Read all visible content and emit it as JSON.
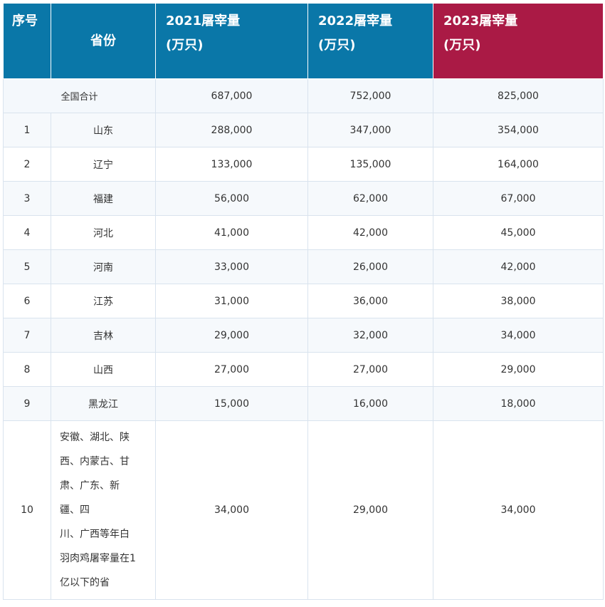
{
  "headers": {
    "seq": "序号",
    "province": "省份",
    "y2021_line1": "2021屠宰量",
    "y2021_line2": "(万只)",
    "y2022_line1": "2022屠宰量",
    "y2022_line2": "(万只)",
    "y2023_line1": "2023屠宰量",
    "y2023_line2": "(万只)"
  },
  "total": {
    "label": "全国合计",
    "y2021": "687,000",
    "y2022": "752,000",
    "y2023": "825,000"
  },
  "rows": [
    {
      "seq": "1",
      "province": "山东",
      "y2021": "288,000",
      "y2022": "347,000",
      "y2023": "354,000"
    },
    {
      "seq": "2",
      "province": "辽宁",
      "y2021": "133,000",
      "y2022": "135,000",
      "y2023": "164,000"
    },
    {
      "seq": "3",
      "province": "福建",
      "y2021": "56,000",
      "y2022": "62,000",
      "y2023": "67,000"
    },
    {
      "seq": "4",
      "province": "河北",
      "y2021": "41,000",
      "y2022": "42,000",
      "y2023": "45,000"
    },
    {
      "seq": "5",
      "province": "河南",
      "y2021": "33,000",
      "y2022": "26,000",
      "y2023": "42,000"
    },
    {
      "seq": "6",
      "province": "江苏",
      "y2021": "31,000",
      "y2022": "36,000",
      "y2023": "38,000"
    },
    {
      "seq": "7",
      "province": "吉林",
      "y2021": "29,000",
      "y2022": "32,000",
      "y2023": "34,000"
    },
    {
      "seq": "8",
      "province": "山西",
      "y2021": "27,000",
      "y2022": "27,000",
      "y2023": "29,000"
    },
    {
      "seq": "9",
      "province": "黑龙江",
      "y2021": "15,000",
      "y2022": "16,000",
      "y2023": "18,000"
    }
  ],
  "last_row": {
    "seq": "10",
    "province_lines": [
      "安徽、湖北、陕",
      "西、内蒙古、甘",
      "肃、广东、新",
      "疆、四",
      "川、广西等年白",
      "羽肉鸡屠宰量在1",
      "亿以下的省"
    ],
    "y2021": "34,000",
    "y2022": "29,000",
    "y2023": "34,000"
  },
  "colors": {
    "header_blue": "#0a77a8",
    "header_highlight": "#aa1a45",
    "border": "#d9e3ee"
  }
}
